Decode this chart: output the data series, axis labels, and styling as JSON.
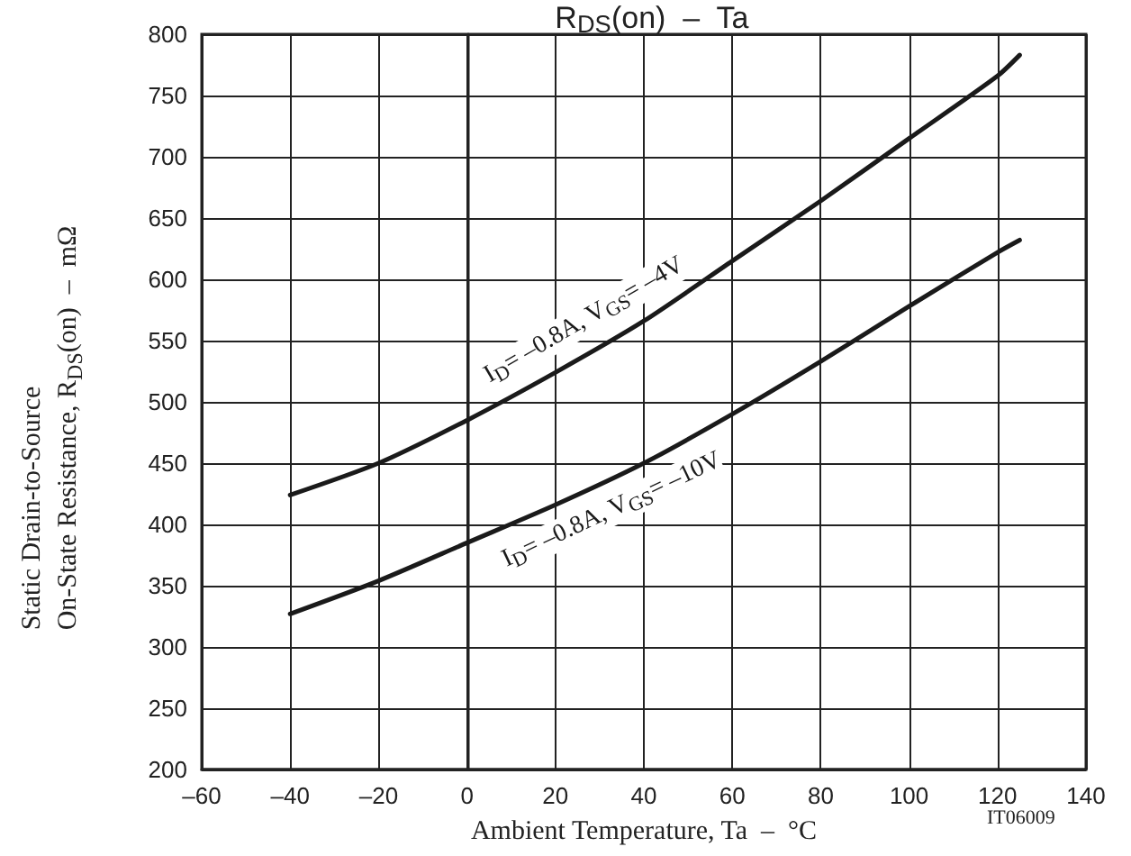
{
  "chart_data": {
    "type": "line",
    "title": "R$_{DS}$(on)  –  Ta",
    "xlabel": "Ambient Temperature, Ta  –  °C",
    "ylabel": "Static Drain-to-Source\nOn-State Resistance, R$_{DS}$(on)  –  mΩ",
    "annotations": [
      "IT06009"
    ],
    "x": [
      -40,
      -20,
      0,
      20,
      40,
      60,
      80,
      100,
      120,
      125
    ],
    "series": [
      {
        "name": "I$_{D}$= –0.8A, V$_{GS}$= –4V",
        "color": "#1a1a1a",
        "values": [
          424,
          450,
          485,
          524,
          566,
          615,
          664,
          715,
          766,
          783
        ]
      },
      {
        "name": "I$_{D}$= –0.8A, V$_{GS}$= –10V",
        "color": "#1a1a1a",
        "values": [
          327,
          354,
          385,
          416,
          450,
          490,
          533,
          578,
          622,
          632
        ]
      }
    ],
    "xlim": [
      -60,
      140
    ],
    "xticks": [
      {
        "value": -60,
        "label": "–60"
      },
      {
        "value": -40,
        "label": "–40"
      },
      {
        "value": -20,
        "label": "–20"
      },
      0,
      20,
      40,
      60,
      80,
      100,
      120,
      140
    ],
    "ylim": [
      200,
      800
    ],
    "yticks": [
      200,
      250,
      300,
      350,
      400,
      450,
      500,
      550,
      600,
      650,
      700,
      750,
      800
    ],
    "grid": true,
    "legend": false,
    "marker": "none",
    "line_style": "solid"
  }
}
